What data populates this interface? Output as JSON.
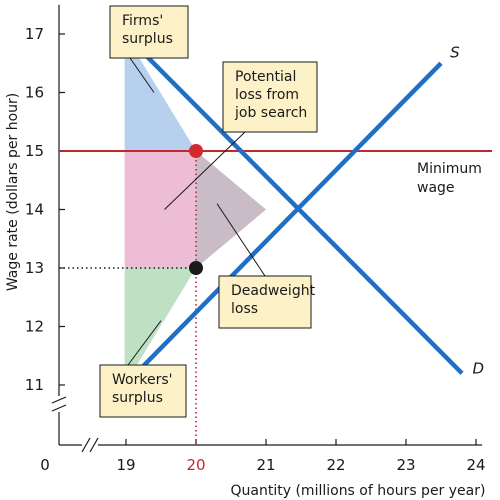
{
  "chart_data": {
    "type": "line",
    "xlabel": "Quantity (millions of hours per year)",
    "ylabel": "Wage rate (dollars per hour)",
    "xlim": [
      19,
      24
    ],
    "ylim": [
      11,
      17.5
    ],
    "x_ticks": [
      19,
      20,
      21,
      22,
      23,
      24
    ],
    "y_ticks": [
      11,
      12,
      13,
      14,
      15,
      16,
      17
    ],
    "x_origin_label": "0",
    "axis_breaks": true,
    "highlight_tick": "20",
    "series": [
      {
        "name": "D",
        "color": "#1f6fc5",
        "points": [
          [
            18.98,
            17
          ],
          [
            23.8,
            11.2
          ]
        ]
      },
      {
        "name": "S",
        "color": "#1f6fc5",
        "points": [
          [
            18.98,
            11
          ],
          [
            23.5,
            16.5
          ]
        ]
      }
    ],
    "reference_lines": {
      "minimum_wage": {
        "value": 15,
        "color": "#c0282e",
        "label": [
          "Minimum",
          "wage"
        ]
      },
      "quantity_dotted": {
        "x": 20,
        "color": "#c0282e"
      },
      "wage_dotted": {
        "y": 13,
        "color": "#1a1a1a"
      }
    },
    "points": [
      {
        "x": 20,
        "y": 15,
        "color": "#d12b2e"
      },
      {
        "x": 20,
        "y": 13,
        "color": "#1a1a1a"
      }
    ],
    "regions": [
      {
        "name": "Firms' surplus",
        "color": "#b6d0ee",
        "polygon": [
          [
            18.98,
            17
          ],
          [
            18.98,
            15
          ],
          [
            20,
            15
          ]
        ]
      },
      {
        "name": "Potential loss from job search",
        "color": "#edbdd6",
        "polygon": [
          [
            18.98,
            15
          ],
          [
            20,
            15
          ],
          [
            20,
            13
          ],
          [
            18.98,
            13
          ]
        ]
      },
      {
        "name": "Deadweight loss",
        "color": "#c9bcc6",
        "polygon": [
          [
            20,
            15
          ],
          [
            21,
            14
          ],
          [
            20,
            13
          ]
        ]
      },
      {
        "name": "Workers' surplus",
        "color": "#bfe0c2",
        "polygon": [
          [
            18.98,
            13
          ],
          [
            20,
            13
          ],
          [
            18.98,
            11
          ]
        ]
      }
    ],
    "annotations": [
      {
        "lines": [
          "Firms'",
          "surplus"
        ],
        "target": [
          19.4,
          16.0
        ]
      },
      {
        "lines": [
          "Potential",
          "loss from",
          "job search"
        ],
        "target": [
          19.55,
          14.0
        ]
      },
      {
        "lines": [
          "Deadweight",
          "loss"
        ],
        "target": [
          20.3,
          14.1
        ]
      },
      {
        "lines": [
          "Workers'",
          "surplus"
        ],
        "target": [
          19.5,
          12.1
        ]
      }
    ],
    "curve_labels": [
      {
        "text": "S",
        "at": [
          23.63,
          16.6
        ]
      },
      {
        "text": "D",
        "at": [
          23.95,
          11.2
        ]
      }
    ],
    "grid": false,
    "legend": "none"
  }
}
